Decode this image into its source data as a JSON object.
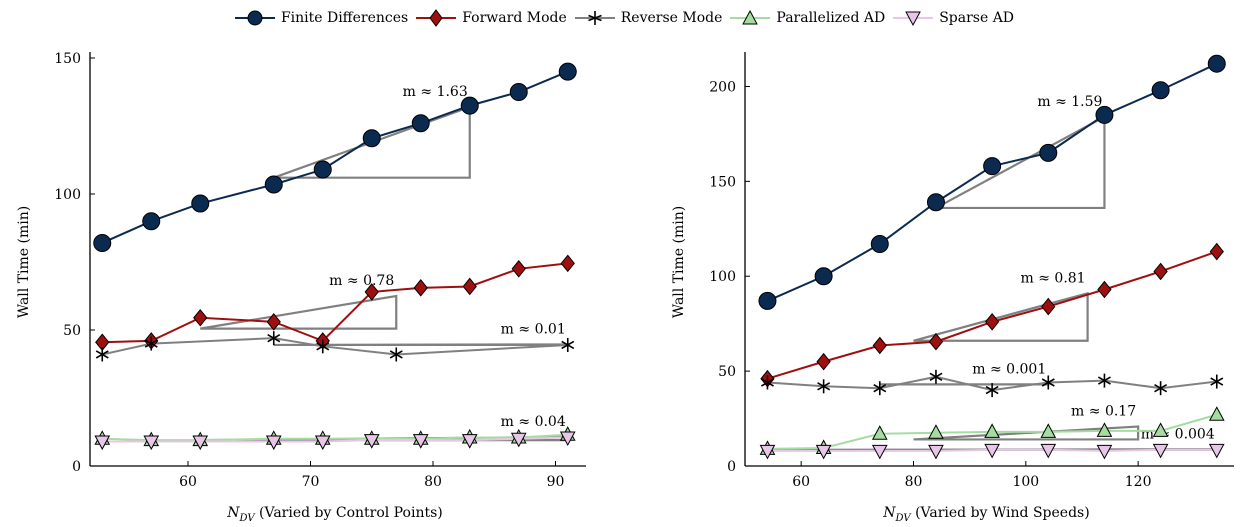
{
  "legend": [
    {
      "label": "Finite Differences",
      "color": "#0b2a50",
      "marker": "circle"
    },
    {
      "label": "Forward Mode",
      "color": "#9e0f0f",
      "marker": "diamond"
    },
    {
      "label": "Reverse Mode",
      "color": "#808080",
      "marker": "star"
    },
    {
      "label": "Parallelized AD",
      "color": "#a5dca0",
      "marker": "triangle-up"
    },
    {
      "label": "Sparse AD",
      "color": "#e8c6e8",
      "marker": "triangle-down"
    }
  ],
  "chart_data": [
    {
      "type": "line",
      "xlabel": "N_DV  (Varied by Control Points)",
      "ylabel": "Wall Time (min)",
      "xlim": [
        52,
        92
      ],
      "ylim": [
        0,
        150
      ],
      "xticks": [
        60,
        70,
        80,
        90
      ],
      "yticks": [
        0,
        50,
        100,
        150
      ],
      "grid": false,
      "series": [
        {
          "name": "Finite Differences",
          "x": [
            53,
            57,
            61,
            67,
            71,
            75,
            79,
            83,
            87,
            91
          ],
          "y": [
            82,
            90,
            96.5,
            103.5,
            109,
            120.5,
            126,
            132.5,
            137.5,
            145
          ]
        },
        {
          "name": "Forward Mode",
          "x": [
            53,
            57,
            61,
            67,
            71,
            75,
            79,
            83,
            87,
            91
          ],
          "y": [
            45.5,
            46,
            54.5,
            53,
            46,
            64,
            65.5,
            66,
            72.5,
            74.5
          ]
        },
        {
          "name": "Reverse Mode",
          "x": [
            53,
            57,
            67,
            71,
            77,
            91
          ],
          "y": [
            41,
            45,
            47,
            44,
            41,
            44.5
          ]
        },
        {
          "name": "Parallelized AD",
          "x": [
            53,
            57,
            61,
            67,
            71,
            75,
            79,
            83,
            87,
            91
          ],
          "y": [
            10,
            9.5,
            9.5,
            10,
            10,
            10,
            10,
            10.5,
            10.5,
            11.5
          ]
        },
        {
          "name": "Sparse AD",
          "x": [
            53,
            57,
            61,
            67,
            71,
            75,
            79,
            83,
            87,
            91
          ],
          "y": [
            9,
            9,
            9,
            9,
            9,
            9.5,
            9.5,
            9.5,
            10,
            10.5
          ]
        }
      ],
      "annotations": [
        {
          "text": "m ≈ 1.63",
          "x0": 67,
          "x1": 83,
          "y0": 106,
          "y1": 132
        },
        {
          "text": "m ≈ 0.78",
          "x0": 61,
          "x1": 77,
          "y0": 50.5,
          "y1": 62.5
        },
        {
          "text": "m ≈ 0.01",
          "x0": 67,
          "x1": 91,
          "y0": 44.5,
          "y1": 44.7
        },
        {
          "text": "m ≈ 0.04",
          "x0": 61,
          "x1": 91,
          "y0": 9.5,
          "y1": 10.7
        }
      ]
    },
    {
      "type": "line",
      "xlabel": "N_DV  (Varied by Wind Speeds)",
      "ylabel": "Wall Time (min)",
      "xlim": [
        50,
        136
      ],
      "ylim": [
        0,
        215
      ],
      "xticks": [
        60,
        80,
        100,
        120
      ],
      "yticks": [
        0,
        50,
        100,
        150,
        200
      ],
      "grid": false,
      "series": [
        {
          "name": "Finite Differences",
          "x": [
            54,
            64,
            74,
            84,
            94,
            104,
            114,
            124,
            134
          ],
          "y": [
            87,
            100,
            117,
            139,
            158,
            165,
            185,
            198,
            212
          ]
        },
        {
          "name": "Forward Mode",
          "x": [
            54,
            64,
            74,
            84,
            94,
            104,
            114,
            124,
            134
          ],
          "y": [
            46,
            55,
            63.5,
            65.5,
            76,
            84,
            93,
            102.5,
            113
          ]
        },
        {
          "name": "Reverse Mode",
          "x": [
            54,
            64,
            74,
            84,
            94,
            104,
            114,
            124,
            134
          ],
          "y": [
            44,
            42,
            41,
            47,
            40,
            44,
            45,
            41,
            44.5
          ]
        },
        {
          "name": "Parallelized AD",
          "x": [
            54,
            64,
            74,
            84,
            94,
            104,
            114,
            124,
            134
          ],
          "y": [
            9,
            9.5,
            17,
            17.5,
            18,
            18,
            18.5,
            18.5,
            27
          ]
        },
        {
          "name": "Sparse AD",
          "x": [
            54,
            64,
            74,
            84,
            94,
            104,
            114,
            124,
            134
          ],
          "y": [
            8,
            8,
            8,
            8,
            8.5,
            8.5,
            8,
            8.5,
            8.5
          ]
        }
      ],
      "annotations": [
        {
          "text": "m ≈ 1.59",
          "x0": 84,
          "x1": 114,
          "y0": 136,
          "y1": 184
        },
        {
          "text": "m ≈ 0.81",
          "x0": 80,
          "x1": 111,
          "y0": 66,
          "y1": 91
        },
        {
          "text": "m ≈ 0.001",
          "x0": 74,
          "x1": 104,
          "y0": 43,
          "y1": 43.03
        },
        {
          "text": "m ≈ 0.17",
          "x0": 80,
          "x1": 120,
          "y0": 14,
          "y1": 20.8
        },
        {
          "text": "m ≈ 0.004",
          "x0": 54,
          "x1": 134,
          "y0": 8.5,
          "y1": 8.8
        }
      ]
    }
  ]
}
